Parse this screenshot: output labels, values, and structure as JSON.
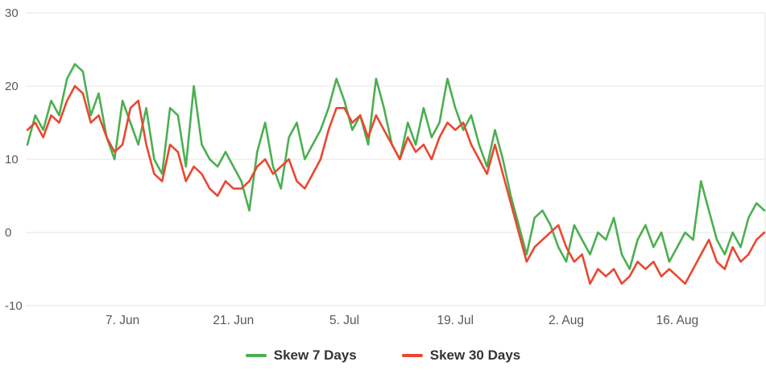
{
  "colors": {
    "background": "#ffffff",
    "grid": "#e6e6e6",
    "axis_label": "#58595b",
    "legend_text": "#333333"
  },
  "chart_data": {
    "type": "line",
    "title": "",
    "xlabel": "",
    "ylabel": "",
    "ylim": [
      -10,
      30
    ],
    "grid": true,
    "legend_position": "bottom",
    "y_ticks": [
      30,
      20,
      10,
      0,
      -10
    ],
    "x_tick_labels": [
      "7. Jun",
      "21. Jun",
      "5. Jul",
      "19. Jul",
      "2. Aug",
      "16. Aug"
    ],
    "x_tick_indices": [
      12,
      26,
      40,
      54,
      68,
      82
    ],
    "x_span_note": "94 daily points from late May to late August",
    "series": [
      {
        "name": "Skew 7 Days",
        "color": "#4caf50",
        "values": [
          12,
          16,
          14,
          18,
          16,
          21,
          23,
          22,
          16,
          19,
          13,
          10,
          18,
          15,
          12,
          17,
          10,
          8,
          17,
          16,
          9,
          20,
          12,
          10,
          9,
          11,
          9,
          7,
          3,
          11,
          15,
          9,
          6,
          13,
          15,
          10,
          12,
          14,
          17,
          21,
          18,
          14,
          16,
          12,
          21,
          17,
          12,
          10,
          15,
          12,
          17,
          13,
          15,
          21,
          17,
          14,
          16,
          12,
          9,
          14,
          10,
          5,
          1,
          -3,
          2,
          3,
          1,
          -2,
          -4,
          1,
          -1,
          -3,
          0,
          -1,
          2,
          -3,
          -5,
          -1,
          1,
          -2,
          0,
          -4,
          -2,
          0,
          -1,
          7,
          3,
          -1,
          -3,
          0,
          -2,
          2,
          4,
          3
        ]
      },
      {
        "name": "Skew 30 Days",
        "color": "#ea4731",
        "values": [
          14,
          15,
          13,
          16,
          15,
          18,
          20,
          19,
          15,
          16,
          13,
          11,
          12,
          17,
          18,
          12,
          8,
          7,
          12,
          11,
          7,
          9,
          8,
          6,
          5,
          7,
          6,
          6,
          7,
          9,
          10,
          8,
          9,
          10,
          7,
          6,
          8,
          10,
          14,
          17,
          17,
          15,
          16,
          13,
          16,
          14,
          12,
          10,
          13,
          11,
          12,
          10,
          13,
          15,
          14,
          15,
          12,
          10,
          8,
          12,
          8,
          4,
          0,
          -4,
          -2,
          -1,
          0,
          1,
          -2,
          -4,
          -3,
          -7,
          -5,
          -6,
          -5,
          -7,
          -6,
          -4,
          -5,
          -4,
          -6,
          -5,
          -6,
          -7,
          -5,
          -3,
          -1,
          -4,
          -5,
          -2,
          -4,
          -3,
          -1,
          0
        ]
      }
    ]
  }
}
